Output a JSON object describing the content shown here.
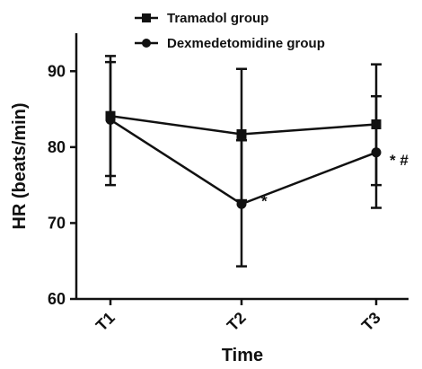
{
  "chart_data": {
    "type": "line",
    "xlabel": "Time",
    "ylabel": "HR (beats/min)",
    "categories": [
      "T1",
      "T2",
      "T3"
    ],
    "ylim": [
      60,
      95
    ],
    "yticks": [
      60,
      70,
      80,
      90
    ],
    "grid": false,
    "legend_position": "top",
    "series": [
      {
        "name": "Tramadol group",
        "marker": "square",
        "values": [
          84.1,
          81.7,
          83.0
        ],
        "error_low": [
          75.0,
          73.0,
          75.0
        ],
        "error_high": [
          92.0,
          90.3,
          90.9
        ]
      },
      {
        "name": "Dexmedetomidine group",
        "marker": "circle",
        "values": [
          83.6,
          72.5,
          79.3
        ],
        "error_low": [
          76.2,
          64.3,
          72.0
        ],
        "error_high": [
          91.2,
          80.9,
          86.7
        ]
      }
    ],
    "annotations": [
      {
        "x": "T2",
        "y": 72.5,
        "text": "*"
      },
      {
        "x": "T3",
        "y": 79.3,
        "text": "* #"
      }
    ],
    "colors": {
      "line": "#111111"
    }
  }
}
